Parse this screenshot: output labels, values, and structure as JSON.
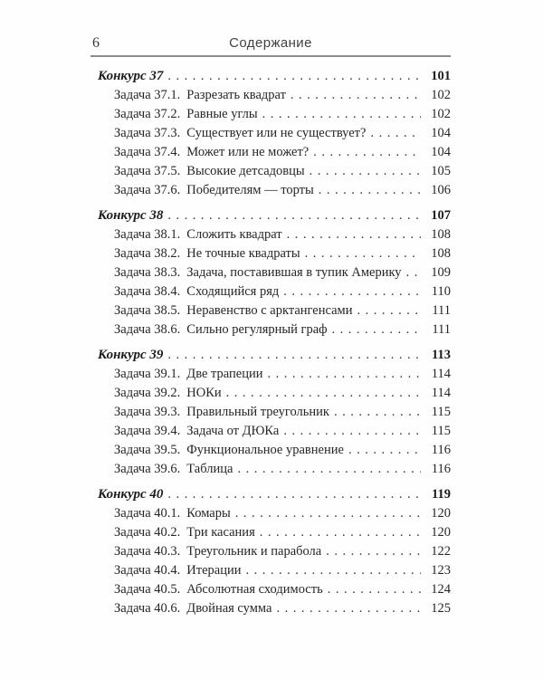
{
  "page": {
    "folio": "6",
    "running_head": "Содержание"
  },
  "toc": {
    "groups": [
      {
        "title": "Конкурс 37",
        "page": "101",
        "items": [
          {
            "label": "Задача 37.1.",
            "title": "Разрезать квадрат",
            "page": "102"
          },
          {
            "label": "Задача 37.2.",
            "title": "Равные углы",
            "page": "102"
          },
          {
            "label": "Задача 37.3.",
            "title": "Существует или не существует?",
            "page": "104"
          },
          {
            "label": "Задача 37.4.",
            "title": "Может или не может?",
            "page": "104"
          },
          {
            "label": "Задача 37.5.",
            "title": "Высокие детсадовцы",
            "page": "105"
          },
          {
            "label": "Задача 37.6.",
            "title": "Победителям — торты",
            "page": "106"
          }
        ]
      },
      {
        "title": "Конкурс 38",
        "page": "107",
        "items": [
          {
            "label": "Задача 38.1.",
            "title": "Сложить квадрат",
            "page": "108"
          },
          {
            "label": "Задача 38.2.",
            "title": "Не точные квадраты",
            "page": "108"
          },
          {
            "label": "Задача 38.3.",
            "title": "Задача, поставившая в тупик Америку",
            "page": "109"
          },
          {
            "label": "Задача 38.4.",
            "title": "Сходящийся ряд",
            "page": "110"
          },
          {
            "label": "Задача 38.5.",
            "title": "Неравенство с арктангенсами",
            "page": "111"
          },
          {
            "label": "Задача 38.6.",
            "title": "Сильно регулярный граф",
            "page": "111"
          }
        ]
      },
      {
        "title": "Конкурс 39",
        "page": "113",
        "items": [
          {
            "label": "Задача 39.1.",
            "title": "Две трапеции",
            "page": "114"
          },
          {
            "label": "Задача 39.2.",
            "title": "НОКи",
            "page": "114"
          },
          {
            "label": "Задача 39.3.",
            "title": "Правильный треугольник",
            "page": "115"
          },
          {
            "label": "Задача 39.4.",
            "title": "Задача от ДЮКа",
            "page": "115"
          },
          {
            "label": "Задача 39.5.",
            "title": "Функциональное уравнение",
            "page": "116"
          },
          {
            "label": "Задача 39.6.",
            "title": "Таблица",
            "page": "116"
          }
        ]
      },
      {
        "title": "Конкурс 40",
        "page": "119",
        "items": [
          {
            "label": "Задача 40.1.",
            "title": "Комары",
            "page": "120"
          },
          {
            "label": "Задача 40.2.",
            "title": "Три касания",
            "page": "120"
          },
          {
            "label": "Задача 40.3.",
            "title": "Треугольник и парабола",
            "page": "122"
          },
          {
            "label": "Задача 40.4.",
            "title": "Итерации",
            "page": "123"
          },
          {
            "label": "Задача 40.5.",
            "title": "Абсолютная сходимость",
            "page": "124"
          },
          {
            "label": "Задача 40.6.",
            "title": "Двойная сумма",
            "page": "125"
          }
        ]
      }
    ]
  }
}
